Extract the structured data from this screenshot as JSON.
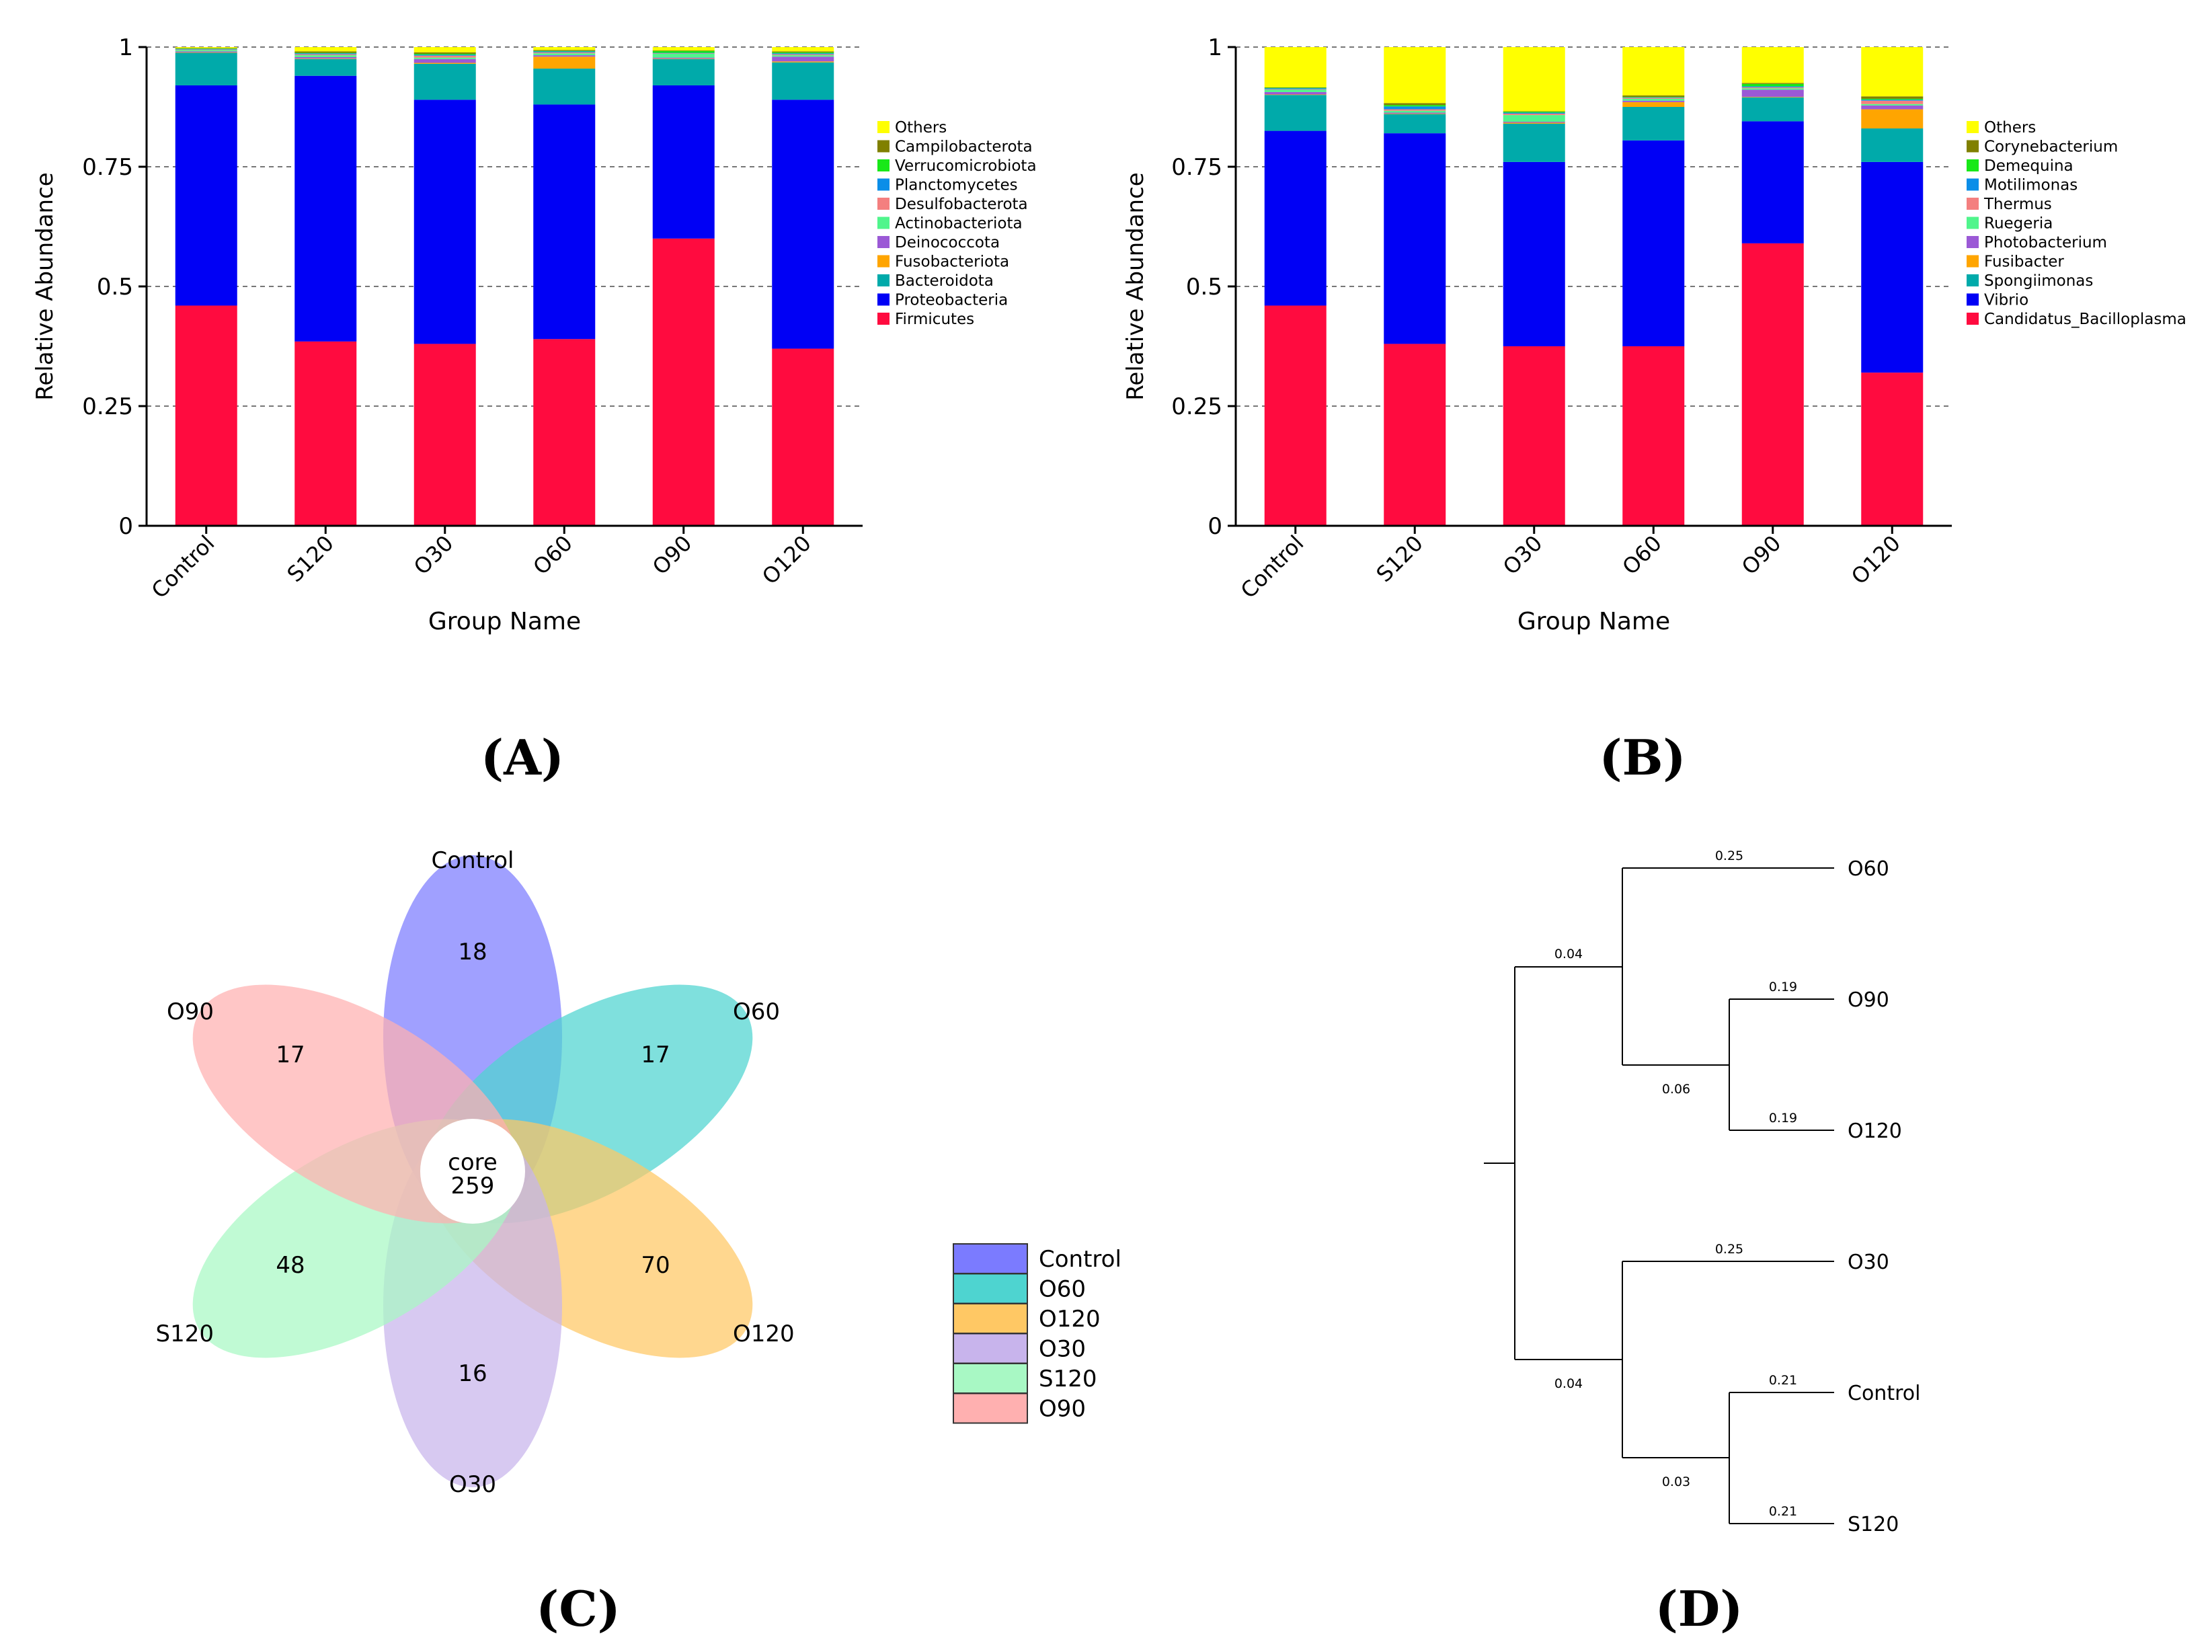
{
  "colors": {
    "Firmicutes": "#ff0b3f",
    "Proteobacteria": "#0000f5",
    "Bacteroidota": "#00aaaa",
    "Fusobacteriota": "#ffa500",
    "Deinococcota": "#9b59d6",
    "Actinobacteriota": "#50f58c",
    "Desulfobacterota": "#f47f7f",
    "Planctomycetes": "#0b8ee8",
    "Verrucomicrobiota": "#18e818",
    "Campilobacterota": "#808000",
    "Others": "#ffff00"
  },
  "chart_data": [
    {
      "panel": "A",
      "type": "bar",
      "stacked": true,
      "xlabel": "Group Name",
      "ylabel": "Relative Abundance",
      "ylim": [
        0,
        1
      ],
      "yticks": [
        "0",
        "0.25",
        "0.5",
        "0.75",
        "1"
      ],
      "categories": [
        "Control",
        "S120",
        "O30",
        "O60",
        "O90",
        "O120"
      ],
      "legend_title": "",
      "series": [
        {
          "name": "Firmicutes",
          "color": "#ff0b3f",
          "values": [
            0.46,
            0.385,
            0.38,
            0.39,
            0.6,
            0.37
          ]
        },
        {
          "name": "Proteobacteria",
          "color": "#0000f5",
          "values": [
            0.46,
            0.555,
            0.51,
            0.49,
            0.32,
            0.52
          ]
        },
        {
          "name": "Bacteroidota",
          "color": "#00aaaa",
          "values": [
            0.068,
            0.035,
            0.075,
            0.075,
            0.055,
            0.078
          ]
        },
        {
          "name": "Fusobacteriota",
          "color": "#ffa500",
          "values": [
            0.001,
            0.001,
            0.002,
            0.025,
            0.001,
            0.002
          ]
        },
        {
          "name": "Deinococcota",
          "color": "#9b59d6",
          "values": [
            0.002,
            0.003,
            0.008,
            0.003,
            0.002,
            0.01
          ]
        },
        {
          "name": "Actinobacteriota",
          "color": "#50f58c",
          "values": [
            0.003,
            0.004,
            0.003,
            0.004,
            0.008,
            0.003
          ]
        },
        {
          "name": "Desulfobacterota",
          "color": "#f47f7f",
          "values": [
            0.001,
            0.002,
            0.004,
            0.002,
            0.001,
            0.002
          ]
        },
        {
          "name": "Planctomycetes",
          "color": "#0b8ee8",
          "values": [
            0.001,
            0.002,
            0.002,
            0.002,
            0.001,
            0.002
          ]
        },
        {
          "name": "Verrucomicrobiota",
          "color": "#18e818",
          "values": [
            0.001,
            0.001,
            0.002,
            0.001,
            0.004,
            0.002
          ]
        },
        {
          "name": "Campilobacterota",
          "color": "#808000",
          "values": [
            0.001,
            0.003,
            0.003,
            0.002,
            0.001,
            0.002
          ]
        },
        {
          "name": "Others",
          "color": "#ffff00",
          "values": [
            0.002,
            0.009,
            0.011,
            0.006,
            0.007,
            0.009
          ]
        }
      ],
      "legend": [
        "Others",
        "Campilobacterota",
        "Verrucomicrobiota",
        "Planctomycetes",
        "Desulfobacterota",
        "Actinobacteriota",
        "Deinococcota",
        "Fusobacteriota",
        "Bacteroidota",
        "Proteobacteria",
        "Firmicutes"
      ]
    },
    {
      "panel": "B",
      "type": "bar",
      "stacked": true,
      "xlabel": "Group Name",
      "ylabel": "Relative Abundance",
      "ylim": [
        0,
        1
      ],
      "yticks": [
        "0",
        "0.25",
        "0.5",
        "0.75",
        "1"
      ],
      "categories": [
        "Control",
        "S120",
        "O30",
        "O60",
        "O90",
        "O120"
      ],
      "series": [
        {
          "name": "Candidatus_Bacilloplasma",
          "color": "#ff0b3f",
          "values": [
            0.46,
            0.38,
            0.375,
            0.375,
            0.59,
            0.32
          ]
        },
        {
          "name": "Vibrio",
          "color": "#0000f5",
          "values": [
            0.365,
            0.44,
            0.385,
            0.43,
            0.255,
            0.44
          ]
        },
        {
          "name": "Spongiimonas",
          "color": "#00aaaa",
          "values": [
            0.075,
            0.04,
            0.08,
            0.07,
            0.05,
            0.07
          ]
        },
        {
          "name": "Fusibacter",
          "color": "#ffa500",
          "values": [
            0.001,
            0.001,
            0.002,
            0.01,
            0.001,
            0.04
          ]
        },
        {
          "name": "Photobacterium",
          "color": "#9b59d6",
          "values": [
            0.005,
            0.002,
            0.002,
            0.003,
            0.015,
            0.008
          ]
        },
        {
          "name": "Ruegeria",
          "color": "#50f58c",
          "values": [
            0.005,
            0.004,
            0.014,
            0.004,
            0.003,
            0.003
          ]
        },
        {
          "name": "Thermus",
          "color": "#f47f7f",
          "values": [
            0.001,
            0.003,
            0.003,
            0.002,
            0.002,
            0.007
          ]
        },
        {
          "name": "Motilimonas",
          "color": "#0b8ee8",
          "values": [
            0.002,
            0.006,
            0.002,
            0.001,
            0.002,
            0.002
          ]
        },
        {
          "name": "Demequina",
          "color": "#18e818",
          "values": [
            0.001,
            0.003,
            0.002,
            0.001,
            0.005,
            0.002
          ]
        },
        {
          "name": "Corynebacterium",
          "color": "#808000",
          "values": [
            0.001,
            0.004,
            0.001,
            0.003,
            0.002,
            0.005
          ]
        },
        {
          "name": "Others",
          "color": "#ffff00",
          "values": [
            0.084,
            0.117,
            0.134,
            0.101,
            0.075,
            0.103
          ]
        }
      ],
      "legend": [
        "Others",
        "Corynebacterium",
        "Demequina",
        "Motilimonas",
        "Thermus",
        "Ruegeria",
        "Photobacterium",
        "Fusibacter",
        "Spongiimonas",
        "Vibrio",
        "Candidatus_Bacilloplasma"
      ]
    }
  ],
  "venn": {
    "core_label": "core",
    "core_value": "259",
    "petals": [
      {
        "name": "Control",
        "value": "18",
        "color": "#7b7bff"
      },
      {
        "name": "O60",
        "value": "17",
        "color": "#4ed4d0"
      },
      {
        "name": "O120",
        "value": "70",
        "color": "#ffc864"
      },
      {
        "name": "O30",
        "value": "16",
        "color": "#c8b4ec"
      },
      {
        "name": "S120",
        "value": "48",
        "color": "#a8f8c4"
      },
      {
        "name": "O90",
        "value": "17",
        "color": "#ffb0b0"
      }
    ],
    "legend": [
      "Control",
      "O60",
      "O120",
      "O30",
      "S120",
      "O90"
    ]
  },
  "tree": {
    "leaves": [
      "O60",
      "O90",
      "O120",
      "O30",
      "Control",
      "S120"
    ],
    "branch_lengths": {
      "O60": "0.25",
      "O90": "0.19",
      "O120": "0.19",
      "O30": "0.25",
      "Control": "0.21",
      "S120": "0.21",
      "clade_top": "0.04",
      "clade_o90_o120": "0.06",
      "clade_bottom": "0.04",
      "clade_control_s120": "0.03"
    }
  },
  "panel_labels": {
    "A": "(A)",
    "B": "(B)",
    "C": "(C)",
    "D": "(D)"
  }
}
